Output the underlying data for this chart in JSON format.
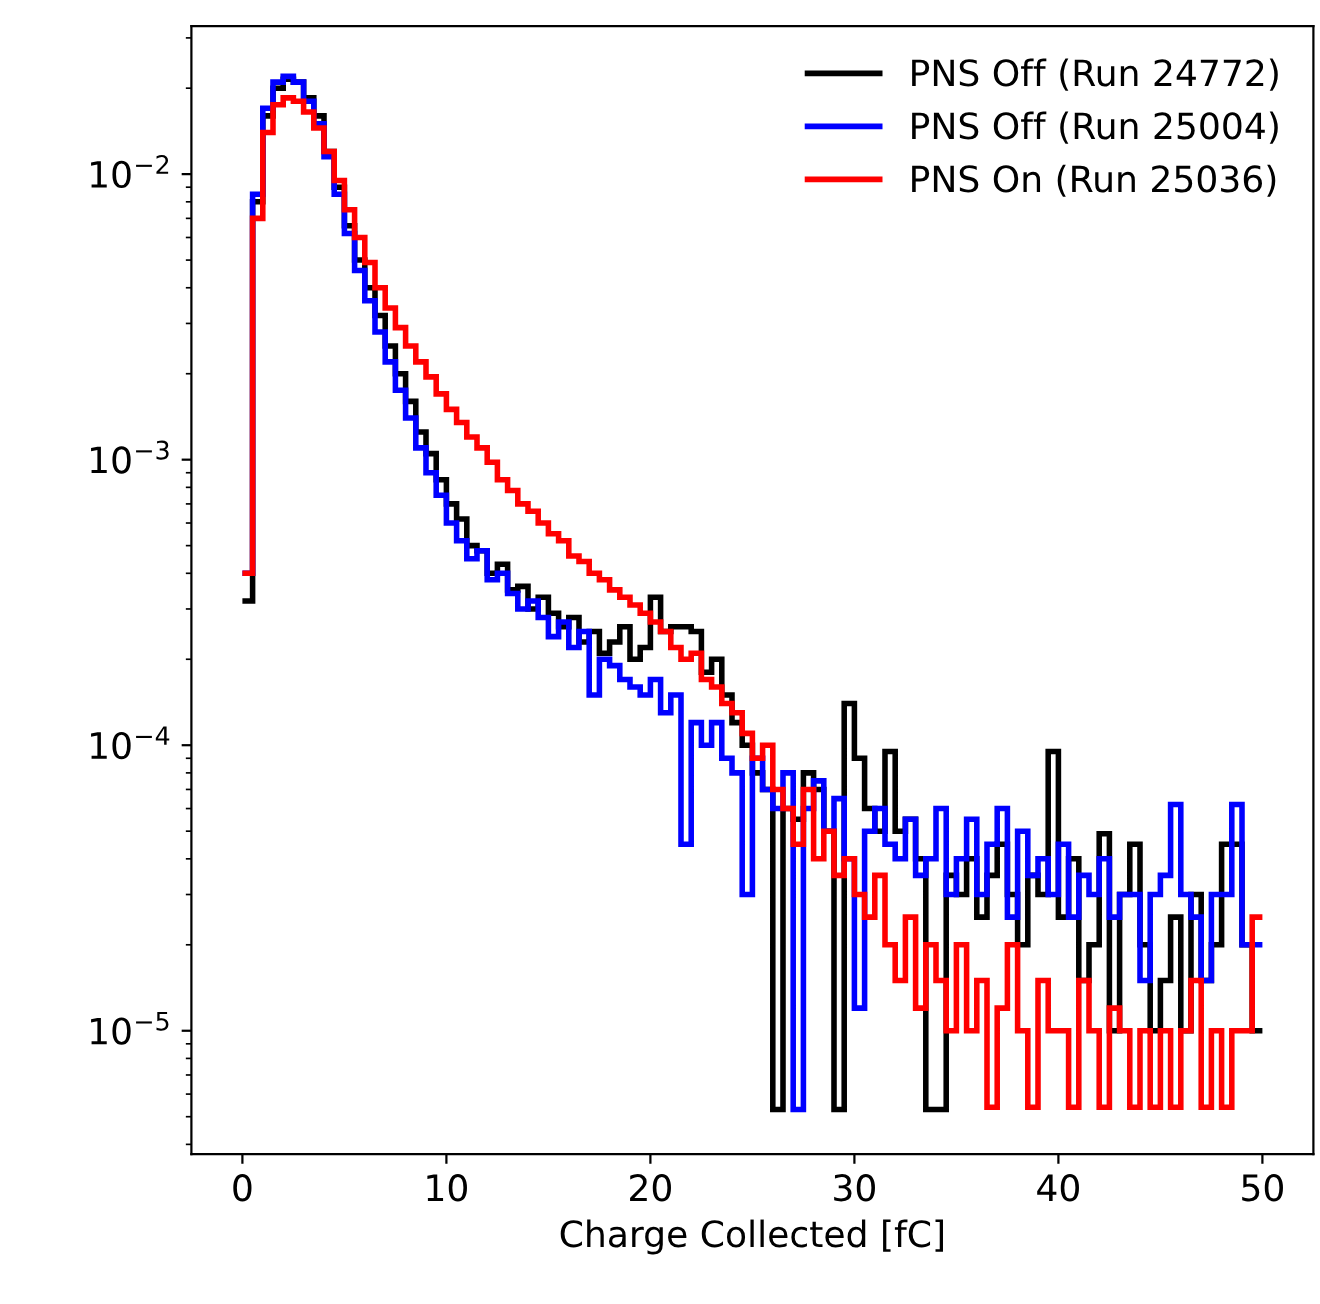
{
  "chart_data": {
    "type": "histogram",
    "xlabel": "Charge Collected [fC]",
    "bins": [
      0,
      0.5,
      1,
      1.5,
      2,
      2.5,
      3,
      3.5,
      4,
      4.5,
      5,
      5.5,
      6,
      6.5,
      7,
      7.5,
      8,
      8.5,
      9,
      9.5,
      10,
      10.5,
      11,
      11.5,
      12,
      12.5,
      13,
      13.5,
      14,
      14.5,
      15,
      15.5,
      16,
      16.5,
      17,
      17.5,
      18,
      18.5,
      19,
      19.5,
      20,
      20.5,
      21,
      21.5,
      22,
      22.5,
      23,
      23.5,
      24,
      24.5,
      25,
      25.5,
      26,
      26.5,
      27,
      27.5,
      28,
      28.5,
      29,
      29.5,
      30,
      30.5,
      31,
      31.5,
      32,
      32.5,
      33,
      33.5,
      34,
      34.5,
      35,
      35.5,
      36,
      36.5,
      37,
      37.5,
      38,
      38.5,
      39,
      39.5,
      40,
      40.5,
      41,
      41.5,
      42,
      42.5,
      43,
      43.5,
      44,
      44.5,
      45,
      45.5,
      46,
      46.5,
      47,
      47.5,
      48,
      48.5,
      49,
      49.5,
      50
    ],
    "series": [
      {
        "name": "PNS Off (Run 24772)",
        "color": "#000000",
        "values": [
          0.00032,
          0.008,
          0.016,
          0.02,
          0.0215,
          0.021,
          0.0185,
          0.016,
          0.012,
          0.009,
          0.0066,
          0.005,
          0.004,
          0.0032,
          0.0025,
          0.002,
          0.0016,
          0.00125,
          0.00105,
          0.00085,
          0.0007,
          0.00062,
          0.0005,
          0.00048,
          0.0004,
          0.00043,
          0.00035,
          0.00036,
          0.0003,
          0.00033,
          0.00029,
          0.00026,
          0.00028,
          0.00023,
          0.00025,
          0.00021,
          0.00023,
          0.00026,
          0.0002,
          0.00022,
          0.00033,
          0.00025,
          0.00026,
          0.00026,
          0.00025,
          0.00018,
          0.0002,
          0.00015,
          0.00012,
          0.0001,
          8e-05,
          7e-05,
          5.3e-06,
          6e-05,
          5.5e-05,
          8e-05,
          7e-05,
          5e-05,
          5.3e-06,
          0.00014,
          9e-05,
          6e-05,
          5e-05,
          9.5e-05,
          5e-05,
          5.5e-05,
          4e-05,
          5.3e-06,
          5.3e-06,
          3.5e-05,
          3e-05,
          4e-05,
          2.5e-05,
          3.5e-05,
          4.5e-05,
          3e-05,
          2e-05,
          3.5e-05,
          3e-05,
          9.5e-05,
          2.5e-05,
          4e-05,
          1.5e-05,
          2e-05,
          4.9e-05,
          1e-05,
          3e-05,
          4.5e-05,
          2e-05,
          1e-05,
          1.5e-05,
          2.5e-05,
          1e-05,
          3e-05,
          1.5e-05,
          2e-05,
          4.5e-05,
          4.5e-05,
          2e-05,
          1e-05
        ]
      },
      {
        "name": "PNS Off (Run 25004)",
        "color": "#0000ff",
        "values": [
          0.0004,
          0.0085,
          0.017,
          0.021,
          0.022,
          0.021,
          0.018,
          0.015,
          0.0115,
          0.0085,
          0.0062,
          0.0046,
          0.0036,
          0.0028,
          0.0022,
          0.00175,
          0.0014,
          0.0011,
          0.0009,
          0.00075,
          0.0006,
          0.00052,
          0.00045,
          0.00048,
          0.00038,
          0.0004,
          0.00034,
          0.0003,
          0.00032,
          0.00028,
          0.00024,
          0.00027,
          0.00022,
          0.00025,
          0.00015,
          0.0002,
          0.00019,
          0.00017,
          0.00016,
          0.00015,
          0.00017,
          0.00013,
          0.00015,
          4.5e-05,
          0.00012,
          0.0001,
          0.00012,
          9e-05,
          8e-05,
          3e-05,
          9e-05,
          7e-05,
          6e-05,
          8e-05,
          5.3e-06,
          6e-05,
          7.5e-05,
          5e-05,
          6.5e-05,
          4e-05,
          1.2e-05,
          5e-05,
          6e-05,
          4.5e-05,
          4e-05,
          5.5e-05,
          3.5e-05,
          4e-05,
          6e-05,
          3e-05,
          4e-05,
          5.5e-05,
          3e-05,
          4.5e-05,
          6e-05,
          2.5e-05,
          5e-05,
          3.5e-05,
          4e-05,
          3e-05,
          4.5e-05,
          2.5e-05,
          3.5e-05,
          3e-05,
          4e-05,
          2.5e-05,
          3e-05,
          3e-05,
          1.5e-05,
          3e-05,
          3.5e-05,
          6.2e-05,
          3e-05,
          2.5e-05,
          1.5e-05,
          3e-05,
          3e-05,
          6.2e-05,
          2e-05,
          2e-05
        ]
      },
      {
        "name": "PNS On (Run 25036)",
        "color": "#ff0000",
        "values": [
          0.0004,
          0.007,
          0.014,
          0.0175,
          0.0185,
          0.018,
          0.0165,
          0.0145,
          0.012,
          0.0095,
          0.0075,
          0.006,
          0.0049,
          0.004,
          0.0034,
          0.0029,
          0.0025,
          0.0022,
          0.00195,
          0.0017,
          0.0015,
          0.00135,
          0.0012,
          0.0011,
          0.00098,
          0.00085,
          0.00078,
          0.0007,
          0.00066,
          0.0006,
          0.00055,
          0.00052,
          0.00046,
          0.00044,
          0.0004,
          0.00038,
          0.00035,
          0.00033,
          0.00031,
          0.00029,
          0.00027,
          0.00025,
          0.00022,
          0.0002,
          0.00021,
          0.00017,
          0.00016,
          0.00014,
          0.00013,
          0.00011,
          9e-05,
          0.0001,
          7e-05,
          6e-05,
          4.5e-05,
          7e-05,
          4e-05,
          5e-05,
          3.5e-05,
          4e-05,
          3e-05,
          2.5e-05,
          3.5e-05,
          2e-05,
          1.5e-05,
          2.5e-05,
          1.2e-05,
          2e-05,
          1.5e-05,
          1e-05,
          2e-05,
          1e-05,
          1.5e-05,
          5.4e-06,
          1.2e-05,
          2e-05,
          1e-05,
          5.4e-06,
          1.5e-05,
          1e-05,
          1e-05,
          5.4e-06,
          1.5e-05,
          1e-05,
          5.4e-06,
          1.2e-05,
          1e-05,
          5.4e-06,
          1e-05,
          5.4e-06,
          1e-05,
          5.4e-06,
          1e-05,
          1.5e-05,
          5.4e-06,
          1e-05,
          5.4e-06,
          1e-05,
          1e-05,
          2.5e-05
        ]
      }
    ],
    "log": "y",
    "xlim": [
      -2.5,
      52.5
    ],
    "ylim": [
      3.7e-06,
      0.033
    ],
    "xticks": [
      0,
      10,
      20,
      30,
      40,
      50
    ],
    "yticks": [
      {
        "value": 1e-05,
        "label": "10$^{−5}$"
      },
      {
        "value": 0.0001,
        "label": "10$^{−4}$"
      },
      {
        "value": 0.001,
        "label": "10$^{−3}$"
      },
      {
        "value": 0.01,
        "label": "10$^{−2}$"
      }
    ],
    "legend": "top right",
    "grid": false
  }
}
